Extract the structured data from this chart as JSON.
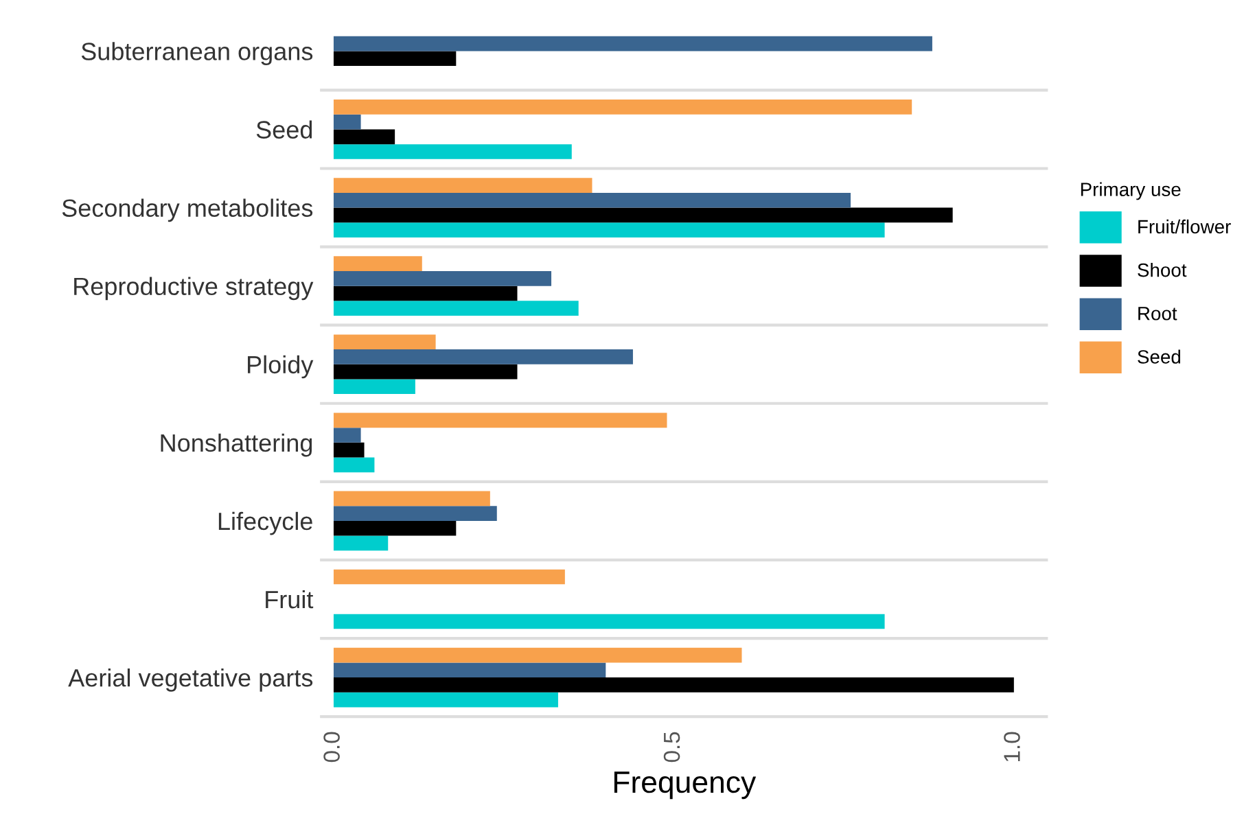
{
  "chart_data": {
    "type": "bar",
    "orientation": "horizontal",
    "xlabel": "Frequency",
    "legend_title": "Primary use",
    "legend": "right",
    "grid": false,
    "categories": [
      "Subterranean organs",
      "Seed",
      "Secondary metabolites",
      "Reproductive strategy",
      "Ploidy",
      "Nonshattering",
      "Lifecycle",
      "Fruit",
      "Aerial vegetative parts"
    ],
    "series": [
      {
        "name": "Fruit/flower",
        "color": "#00cdcd",
        "values": [
          null,
          0.35,
          0.81,
          0.36,
          0.12,
          0.06,
          0.08,
          0.81,
          0.33
        ]
      },
      {
        "name": "Shoot",
        "color": "#000000",
        "values": [
          0.18,
          0.09,
          0.91,
          0.27,
          0.27,
          0.045,
          0.18,
          null,
          1.0
        ]
      },
      {
        "name": "Root",
        "color": "#3a6590",
        "values": [
          0.88,
          0.04,
          0.76,
          0.32,
          0.44,
          0.04,
          0.24,
          null,
          0.4
        ]
      },
      {
        "name": "Seed",
        "color": "#f8a14c",
        "values": [
          null,
          0.85,
          0.38,
          0.13,
          0.15,
          0.49,
          0.23,
          0.34,
          0.6
        ]
      }
    ],
    "xlim": [
      -0.02,
      1.05
    ],
    "xticks": [
      {
        "value": 0,
        "label": "0.0"
      },
      {
        "value": 0.5,
        "label": "0.5"
      },
      {
        "value": 1.0,
        "label": "1.0"
      }
    ]
  }
}
